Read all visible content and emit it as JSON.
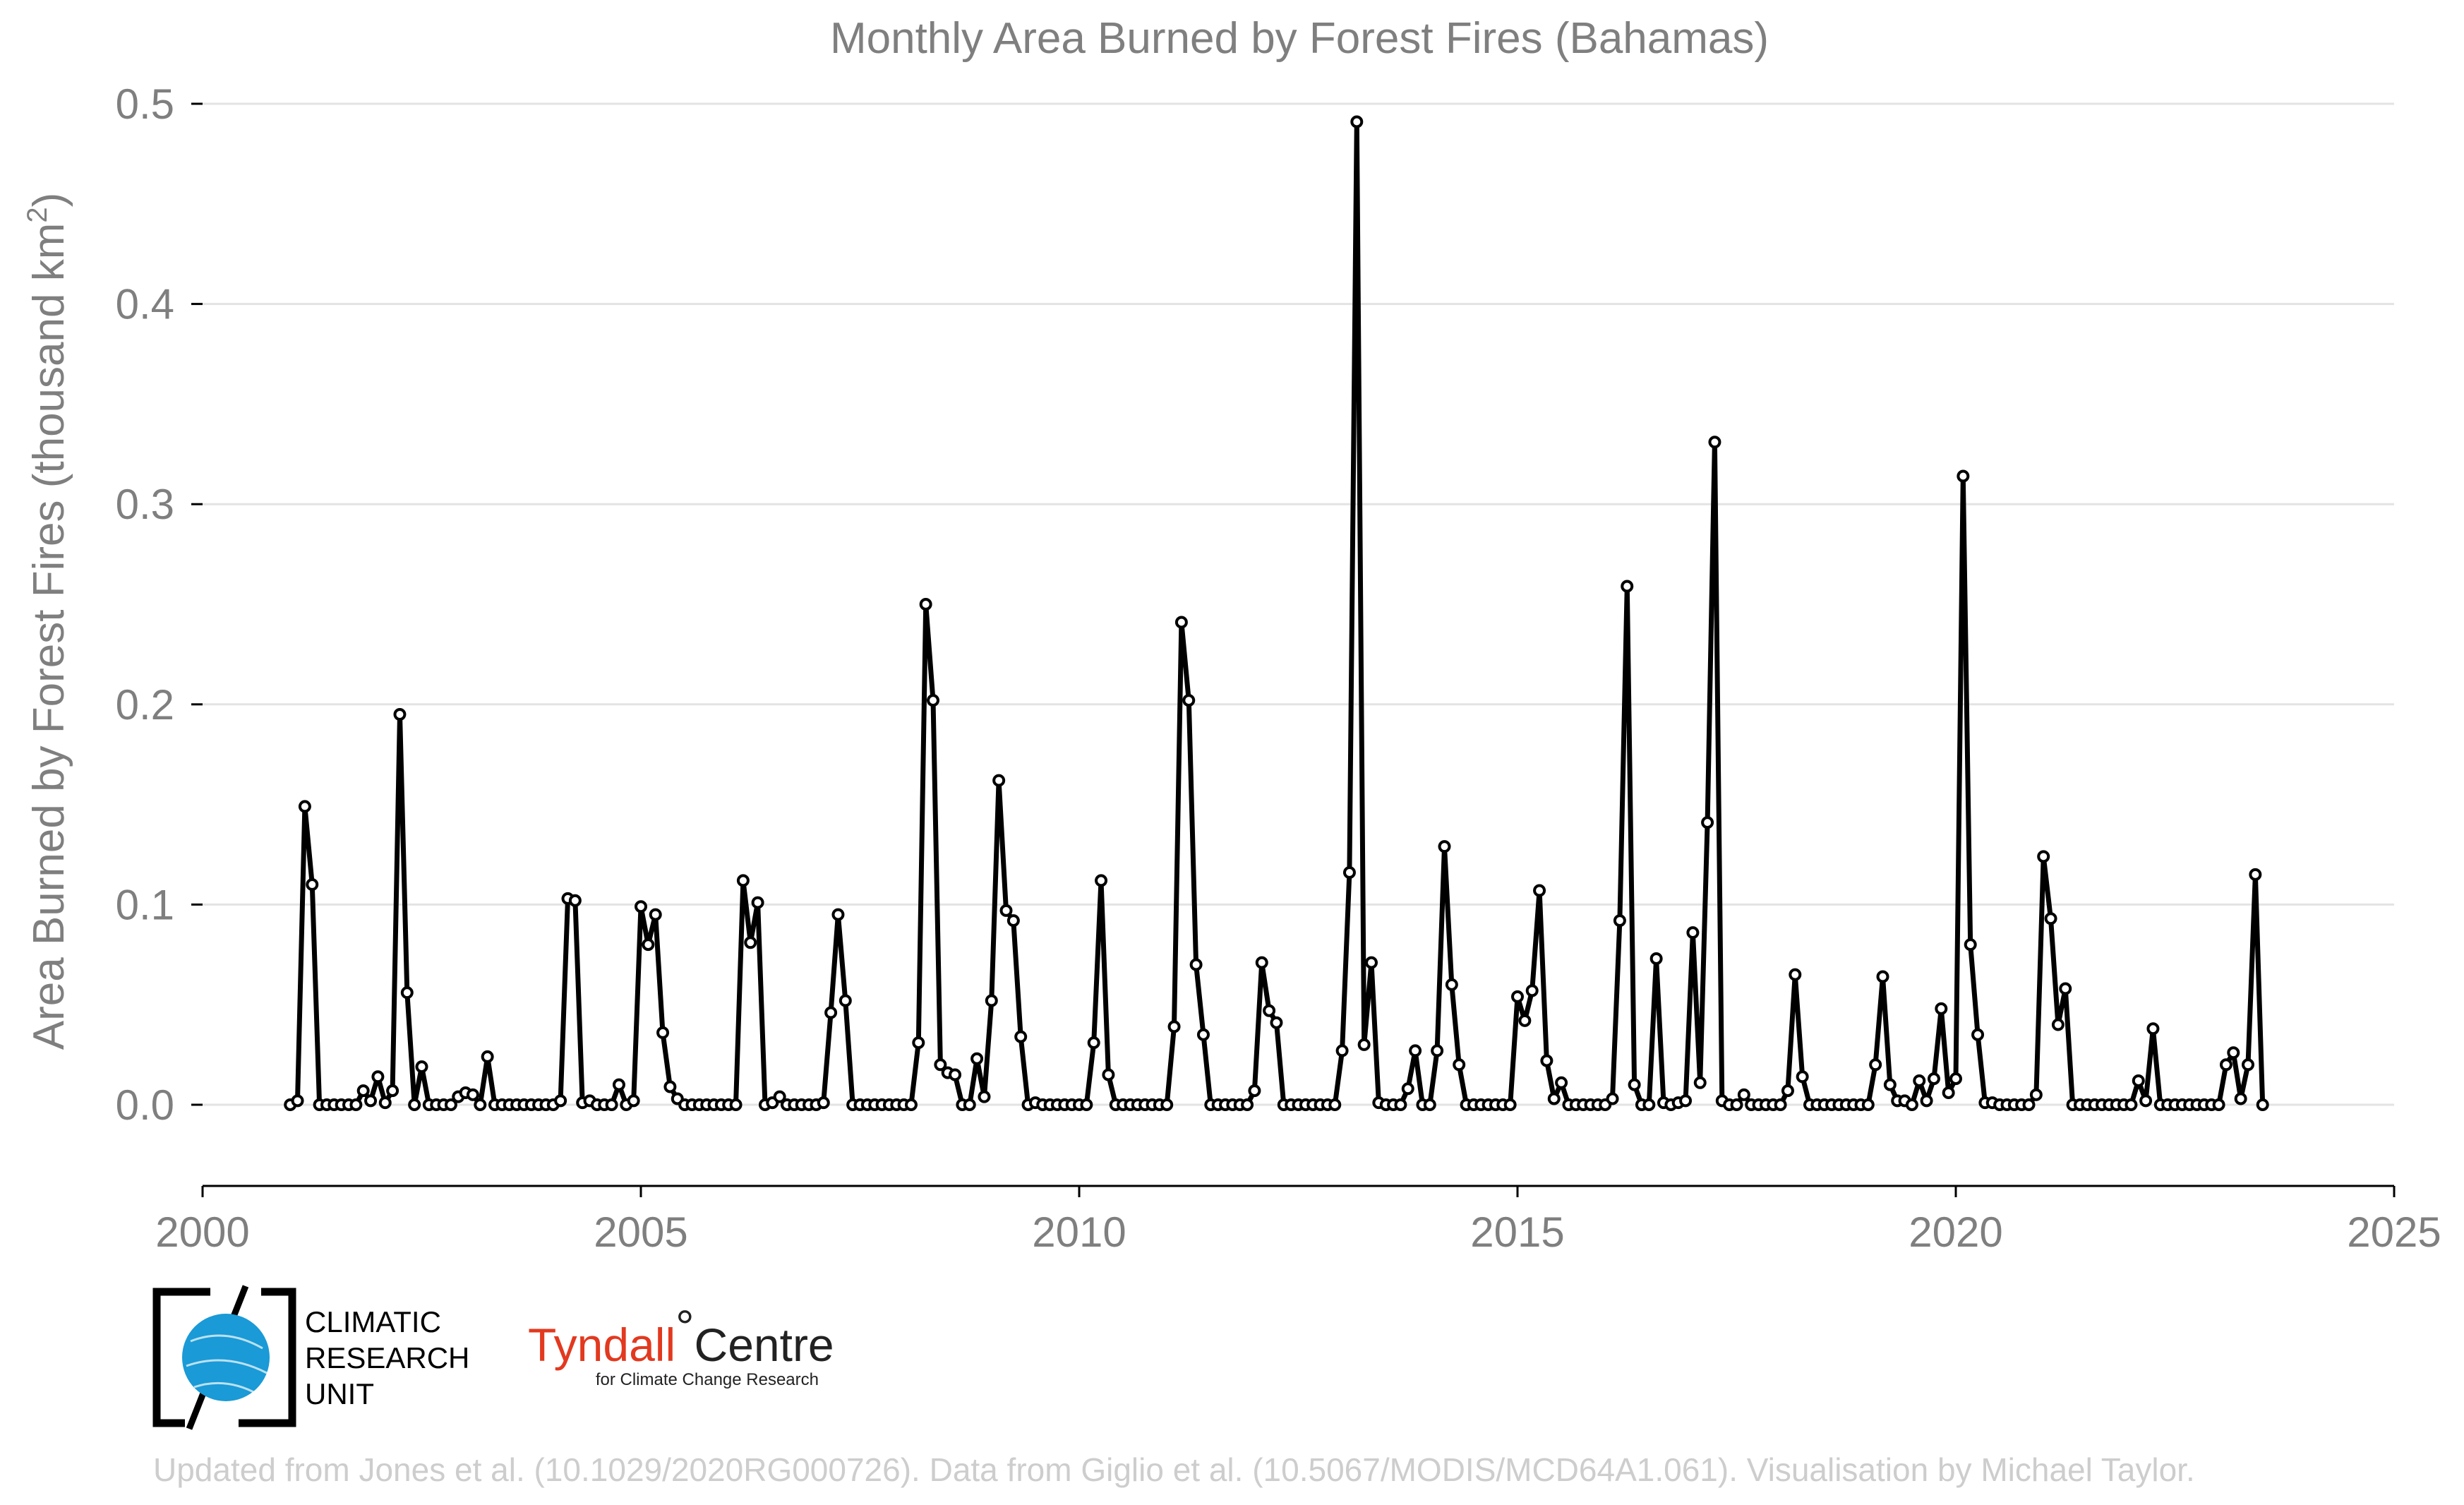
{
  "chart_data": {
    "type": "line",
    "title": "Monthly Area Burned by Forest Fires (Bahamas)",
    "ylabel": "Area Burned by Forest Fires (thousand km",
    "ylabel_sup": "2",
    "ylabel_close": ")",
    "xlim": [
      2000,
      2025
    ],
    "ylim": [
      -0.04,
      0.5
    ],
    "x_ticks": [
      2000,
      2005,
      2010,
      2015,
      2020,
      2025
    ],
    "x_tick_labels": [
      "2000",
      "2005",
      "2010",
      "2015",
      "2020",
      "2025"
    ],
    "y_ticks": [
      0,
      0.1,
      0.2,
      0.3,
      0.4,
      0.5
    ],
    "y_tick_labels": [
      "0.0",
      "0.1",
      "0.2",
      "0.3",
      "0.4",
      "0.5"
    ],
    "grid": "horizontal",
    "series": [
      {
        "start": [
          2001,
          1
        ],
        "values": [
          0.0,
          0.002,
          0.149,
          0.11,
          0.0,
          0.0,
          0.0,
          0.0,
          0.0,
          0.0,
          0.007,
          0.002,
          0.014,
          0.001,
          0.007,
          0.195,
          0.056,
          0.0,
          0.019,
          0.0,
          0.0,
          0.0,
          0.0,
          0.004,
          0.006,
          0.005,
          0.0,
          0.024,
          0.0,
          0.0,
          0.0,
          0.0,
          0.0,
          0.0,
          0.0,
          0.0,
          0.0,
          0.002,
          0.103,
          0.102,
          0.001,
          0.002,
          0.0,
          0.0,
          0.0,
          0.01,
          0.0,
          0.002,
          0.099,
          0.08,
          0.095,
          0.036,
          0.009,
          0.003,
          0.0,
          0.0,
          0.0,
          0.0,
          0.0,
          0.0,
          0.0,
          0.0,
          0.112,
          0.081,
          0.101,
          0.0,
          0.001,
          0.004,
          0.0,
          0.0,
          0.0,
          0.0,
          0.0,
          0.001,
          0.046,
          0.095,
          0.052,
          0.0,
          0.0,
          0.0,
          0.0,
          0.0,
          0.0,
          0.0,
          0.0,
          0.0,
          0.031,
          0.25,
          0.202,
          0.02,
          0.016,
          0.015,
          0.0,
          0.0,
          0.023,
          0.004,
          0.052,
          0.162,
          0.097,
          0.092,
          0.034,
          0.0,
          0.001,
          0.0,
          0.0,
          0.0,
          0.0,
          0.0,
          0.0,
          0.0,
          0.031,
          0.112,
          0.015,
          0.0,
          0.0,
          0.0,
          0.0,
          0.0,
          0.0,
          0.0,
          0.0,
          0.039,
          0.241,
          0.202,
          0.07,
          0.035,
          0.0,
          0.0,
          0.0,
          0.0,
          0.0,
          0.0,
          0.007,
          0.071,
          0.047,
          0.041,
          0.0,
          0.0,
          0.0,
          0.0,
          0.0,
          0.0,
          0.0,
          0.0,
          0.027,
          0.116,
          0.491,
          0.03,
          0.071,
          0.001,
          0.0,
          0.0,
          0.0,
          0.008,
          0.027,
          0.0,
          0.0,
          0.027,
          0.129,
          0.06,
          0.02,
          0.0,
          0.0,
          0.0,
          0.0,
          0.0,
          0.0,
          0.0,
          0.054,
          0.042,
          0.057,
          0.107,
          0.022,
          0.003,
          0.011,
          0.0,
          0.0,
          0.0,
          0.0,
          0.0,
          0.0,
          0.003,
          0.092,
          0.259,
          0.01,
          0.0,
          0.0,
          0.073,
          0.001,
          0.0,
          0.001,
          0.002,
          0.086,
          0.011,
          0.141,
          0.331,
          0.002,
          0.0,
          0.0,
          0.005,
          0.0,
          0.0,
          0.0,
          0.0,
          0.0,
          0.007,
          0.065,
          0.014,
          0.0,
          0.0,
          0.0,
          0.0,
          0.0,
          0.0,
          0.0,
          0.0,
          0.0,
          0.02,
          0.064,
          0.01,
          0.002,
          0.002,
          0.0,
          0.012,
          0.002,
          0.013,
          0.048,
          0.006,
          0.013,
          0.314,
          0.08,
          0.035,
          0.001,
          0.001,
          0.0,
          0.0,
          0.0,
          0.0,
          0.0,
          0.005,
          0.124,
          0.093,
          0.04,
          0.058,
          0.0,
          0.0,
          0.0,
          0.0,
          0.0,
          0.0,
          0.0,
          0.0,
          0.0,
          0.012,
          0.002,
          0.038,
          0.0,
          0.0,
          0.0,
          0.0,
          0.0,
          0.0,
          0.0,
          0.0,
          0.0,
          0.02,
          0.026,
          0.003,
          0.02,
          0.115,
          0.0
        ]
      }
    ]
  },
  "logos": {
    "cru_line1": "CLIMATIC",
    "cru_line2": "RESEARCH",
    "cru_line3": "UNIT",
    "tyndall_a": "Tyndall",
    "tyndall_degree": "°",
    "tyndall_b": "Centre",
    "tyndall_sub": "for Climate Change Research",
    "cru_globe_color": "#1a9ad6",
    "tyndall_color": "#e2391f"
  },
  "credit": "Updated from Jones et al. (10.1029/2020RG000726). Data from Giglio et al. (10.5067/MODIS/MCD64A1.061). Visualisation by Michael Taylor."
}
